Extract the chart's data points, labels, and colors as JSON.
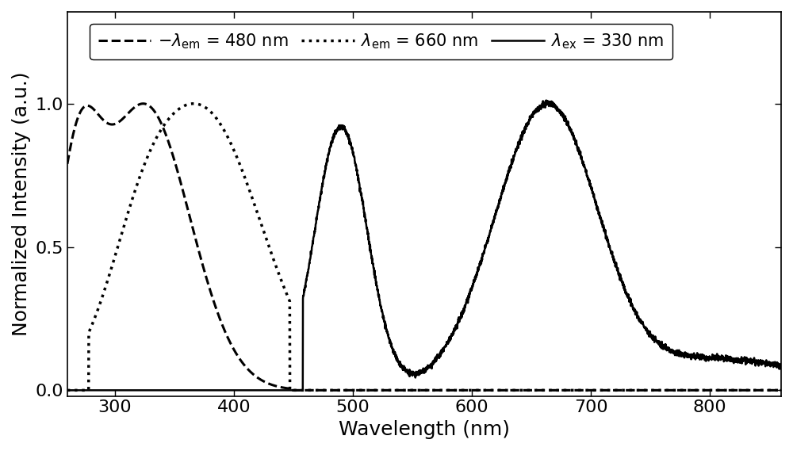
{
  "title": "",
  "xlabel": "Wavelength (nm)",
  "ylabel": "Normalized Intensity (a.u.)",
  "xlim": [
    260,
    860
  ],
  "ylim": [
    -0.02,
    1.32
  ],
  "yticks": [
    0.0,
    0.5,
    1.0
  ],
  "xticks": [
    300,
    400,
    500,
    600,
    700,
    800
  ],
  "line_color": "#000000",
  "background_color": "#ffffff",
  "fontsize_labels": 18,
  "fontsize_ticks": 16,
  "fontsize_legend": 15
}
